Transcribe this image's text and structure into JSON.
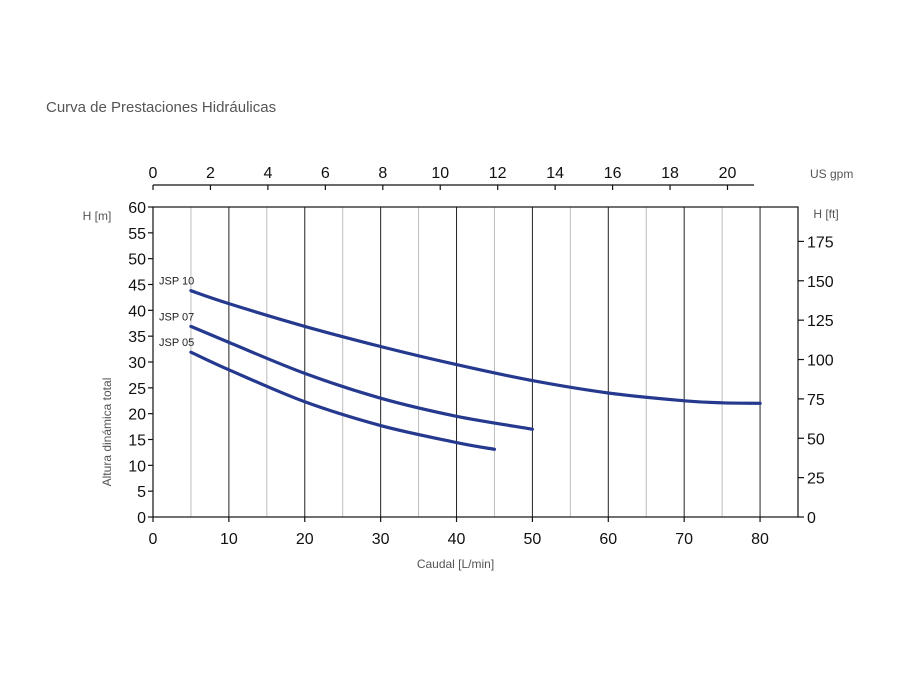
{
  "page_title": "Curva de Prestaciones Hidráulicas",
  "chart_data": {
    "type": "line",
    "title": "Curva de Prestaciones Hidráulicas",
    "xlabel": "Caudal [L/min]",
    "ylabel": "Altura dinámica total",
    "xlim": [
      0,
      85
    ],
    "ylim": [
      0,
      60
    ],
    "x_ticks": [
      0,
      10,
      20,
      30,
      40,
      50,
      60,
      70,
      80
    ],
    "y_ticks": [
      0,
      5,
      10,
      15,
      20,
      25,
      30,
      35,
      40,
      45,
      50,
      55,
      60
    ],
    "y_unit": "H [m]",
    "secondary_x_unit": "US gpm",
    "secondary_x_ticks": [
      0,
      2,
      4,
      6,
      8,
      10,
      12,
      14,
      16,
      18,
      20
    ],
    "secondary_y_unit": "H [ft]",
    "secondary_y_ticks": [
      0,
      25,
      50,
      75,
      100,
      125,
      150,
      175
    ],
    "grid": true,
    "line_color": "#25398f",
    "series": [
      {
        "name": "JSP 10",
        "x": [
          5,
          10,
          20,
          30,
          40,
          50,
          60,
          70,
          75,
          80
        ],
        "y": [
          43.8,
          41.3,
          36.9,
          33.0,
          29.5,
          26.4,
          24.0,
          22.5,
          22.1,
          22.0
        ]
      },
      {
        "name": "JSP 07",
        "x": [
          5,
          10,
          20,
          30,
          40,
          50
        ],
        "y": [
          36.9,
          33.8,
          27.8,
          23.0,
          19.5,
          17.0
        ]
      },
      {
        "name": "JSP 05",
        "x": [
          5,
          10,
          20,
          30,
          40,
          45
        ],
        "y": [
          31.9,
          28.5,
          22.3,
          17.7,
          14.4,
          13.1
        ]
      }
    ]
  }
}
